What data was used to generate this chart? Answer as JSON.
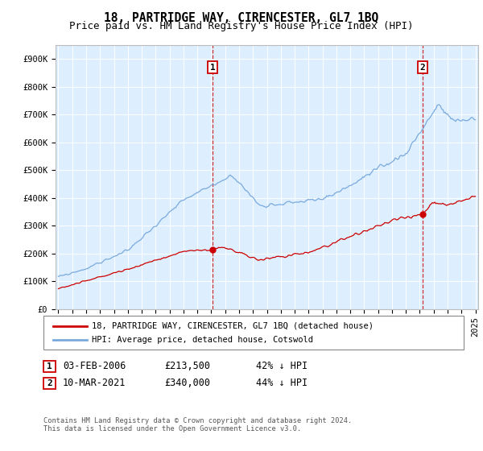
{
  "title": "18, PARTRIDGE WAY, CIRENCESTER, GL7 1BQ",
  "subtitle": "Price paid vs. HM Land Registry's House Price Index (HPI)",
  "xlim_start": 1995,
  "xlim_end": 2025,
  "ylim_min": 0,
  "ylim_max": 950000,
  "yticks": [
    0,
    100000,
    200000,
    300000,
    400000,
    500000,
    600000,
    700000,
    800000,
    900000
  ],
  "ytick_labels": [
    "£0",
    "£100K",
    "£200K",
    "£300K",
    "£400K",
    "£500K",
    "£600K",
    "£700K",
    "£800K",
    "£900K"
  ],
  "xticks": [
    1995,
    1996,
    1997,
    1998,
    1999,
    2000,
    2001,
    2002,
    2003,
    2004,
    2005,
    2006,
    2007,
    2008,
    2009,
    2010,
    2011,
    2012,
    2013,
    2014,
    2015,
    2016,
    2017,
    2018,
    2019,
    2020,
    2021,
    2022,
    2023,
    2024,
    2025
  ],
  "hpi_color": "#7aaadd",
  "price_color": "#cc0000",
  "plot_bg_color": "#ddeeff",
  "marker1_date": 2006.1,
  "marker1_price": 213500,
  "marker2_date": 2021.2,
  "marker2_price": 340000,
  "legend_line1": "18, PARTRIDGE WAY, CIRENCESTER, GL7 1BQ (detached house)",
  "legend_line2": "HPI: Average price, detached house, Cotswold",
  "footnote": "Contains HM Land Registry data © Crown copyright and database right 2024.\nThis data is licensed under the Open Government Licence v3.0.",
  "title_fontsize": 10.5,
  "subtitle_fontsize": 9,
  "tick_fontsize": 7.5,
  "label_fontsize": 8.5
}
